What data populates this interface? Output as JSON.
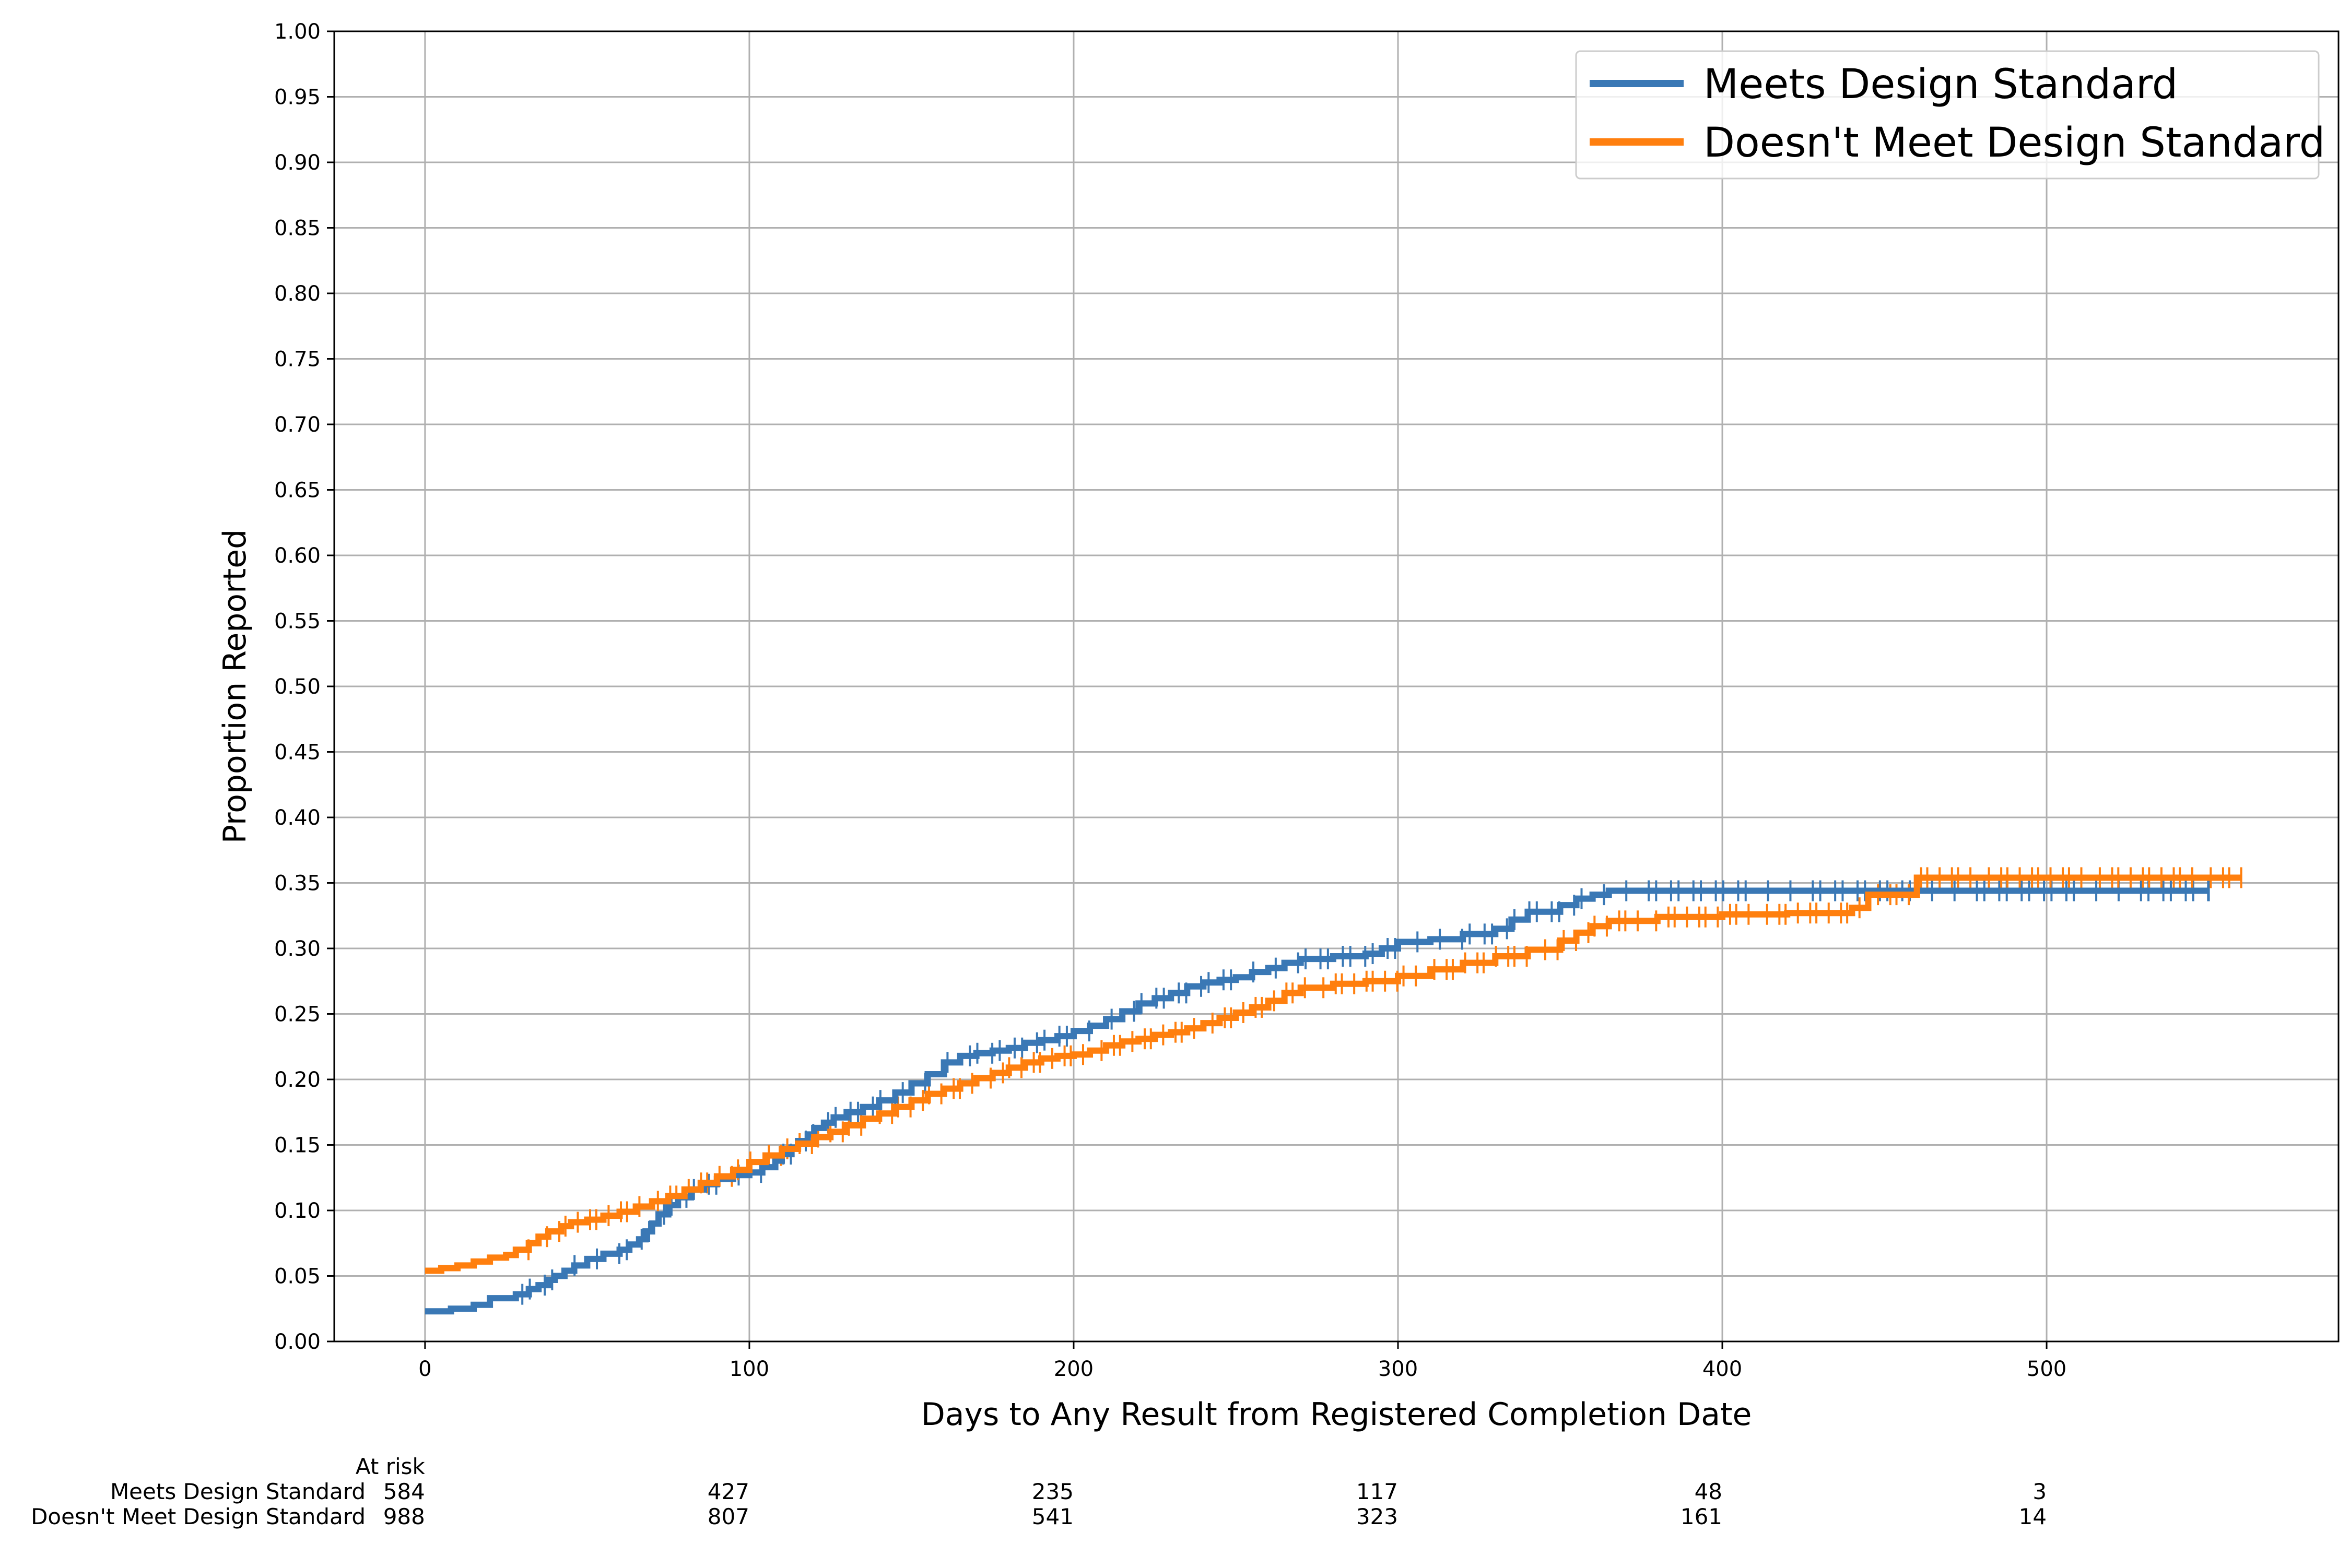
{
  "chart_data": {
    "type": "line",
    "xlabel": "Days to Any Result from Registered Completion Date",
    "ylabel": "Proportion Reported",
    "xlim": [
      -28,
      590
    ],
    "ylim": [
      0,
      1.0
    ],
    "x_ticks": [
      0,
      100,
      200,
      300,
      400,
      500
    ],
    "x_tick_labels": [
      "0",
      "100",
      "200",
      "300",
      "400",
      "500"
    ],
    "y_ticks": [
      0,
      0.05,
      0.1,
      0.15,
      0.2,
      0.25,
      0.3,
      0.35,
      0.4,
      0.45,
      0.5,
      0.55,
      0.6,
      0.65,
      0.7,
      0.75,
      0.8,
      0.85,
      0.9,
      0.95,
      1.0
    ],
    "y_tick_labels": [
      "0.00",
      "0.05",
      "0.10",
      "0.15",
      "0.20",
      "0.25",
      "0.30",
      "0.35",
      "0.40",
      "0.45",
      "0.50",
      "0.55",
      "0.60",
      "0.65",
      "0.70",
      "0.75",
      "0.80",
      "0.85",
      "0.90",
      "0.95",
      "1.00"
    ],
    "grid": true,
    "legend_position": "top-right",
    "series": [
      {
        "name": "Meets Design Standard",
        "color": "#3a78b5",
        "step": "post",
        "x": [
          0,
          8,
          15,
          20,
          28,
          32,
          35,
          38,
          40,
          43,
          46,
          50,
          55,
          60,
          63,
          66,
          68,
          70,
          72,
          75,
          78,
          82,
          86,
          90,
          95,
          100,
          104,
          108,
          110,
          113,
          115,
          118,
          120,
          123,
          126,
          130,
          135,
          140,
          145,
          150,
          155,
          160,
          165,
          170,
          175,
          180,
          185,
          190,
          195,
          200,
          205,
          210,
          215,
          220,
          225,
          230,
          235,
          240,
          245,
          250,
          255,
          260,
          265,
          270,
          280,
          290,
          295,
          300,
          310,
          320,
          330,
          335,
          340,
          350,
          355,
          360,
          365,
          380,
          400,
          450,
          550
        ],
        "y": [
          0.023,
          0.025,
          0.028,
          0.033,
          0.036,
          0.04,
          0.043,
          0.047,
          0.05,
          0.054,
          0.058,
          0.063,
          0.067,
          0.07,
          0.074,
          0.078,
          0.084,
          0.09,
          0.097,
          0.104,
          0.11,
          0.116,
          0.12,
          0.124,
          0.127,
          0.129,
          0.133,
          0.138,
          0.143,
          0.148,
          0.153,
          0.158,
          0.163,
          0.167,
          0.171,
          0.175,
          0.179,
          0.184,
          0.19,
          0.197,
          0.204,
          0.213,
          0.218,
          0.22,
          0.222,
          0.224,
          0.228,
          0.23,
          0.233,
          0.237,
          0.241,
          0.246,
          0.252,
          0.258,
          0.262,
          0.266,
          0.271,
          0.274,
          0.276,
          0.278,
          0.282,
          0.285,
          0.289,
          0.292,
          0.294,
          0.296,
          0.3,
          0.305,
          0.307,
          0.311,
          0.315,
          0.322,
          0.328,
          0.333,
          0.338,
          0.341,
          0.344,
          0.344,
          0.344,
          0.344,
          0.344
        ]
      },
      {
        "name": "Doesn't Meet Design Standard",
        "color": "#ff7f0e",
        "step": "post",
        "x": [
          0,
          5,
          10,
          15,
          20,
          25,
          28,
          32,
          35,
          38,
          42,
          45,
          50,
          55,
          60,
          65,
          70,
          75,
          80,
          85,
          90,
          95,
          100,
          105,
          110,
          115,
          120,
          125,
          130,
          135,
          140,
          145,
          150,
          155,
          160,
          165,
          170,
          175,
          180,
          185,
          190,
          195,
          200,
          205,
          210,
          215,
          220,
          225,
          230,
          235,
          240,
          245,
          250,
          255,
          260,
          265,
          270,
          280,
          290,
          300,
          310,
          320,
          330,
          340,
          350,
          355,
          360,
          365,
          380,
          400,
          420,
          440,
          445,
          460,
          560
        ],
        "y": [
          0.054,
          0.056,
          0.058,
          0.061,
          0.064,
          0.066,
          0.07,
          0.075,
          0.08,
          0.084,
          0.088,
          0.091,
          0.093,
          0.096,
          0.099,
          0.103,
          0.107,
          0.111,
          0.116,
          0.121,
          0.126,
          0.131,
          0.137,
          0.142,
          0.147,
          0.151,
          0.156,
          0.16,
          0.165,
          0.17,
          0.174,
          0.179,
          0.184,
          0.189,
          0.193,
          0.197,
          0.201,
          0.205,
          0.209,
          0.213,
          0.216,
          0.218,
          0.219,
          0.222,
          0.226,
          0.229,
          0.231,
          0.234,
          0.236,
          0.239,
          0.243,
          0.247,
          0.251,
          0.255,
          0.26,
          0.266,
          0.27,
          0.273,
          0.275,
          0.279,
          0.284,
          0.289,
          0.294,
          0.299,
          0.306,
          0.312,
          0.317,
          0.321,
          0.324,
          0.326,
          0.327,
          0.331,
          0.341,
          0.354,
          0.354
        ]
      }
    ],
    "at_risk": {
      "title": "At risk",
      "rows": [
        {
          "name": "Meets Design Standard",
          "counts": [
            "584",
            "427",
            "235",
            "117",
            "48",
            "3"
          ]
        },
        {
          "name": "Doesn't Meet Design Standard",
          "counts": [
            "988",
            "807",
            "541",
            "323",
            "161",
            "14"
          ]
        }
      ]
    }
  }
}
